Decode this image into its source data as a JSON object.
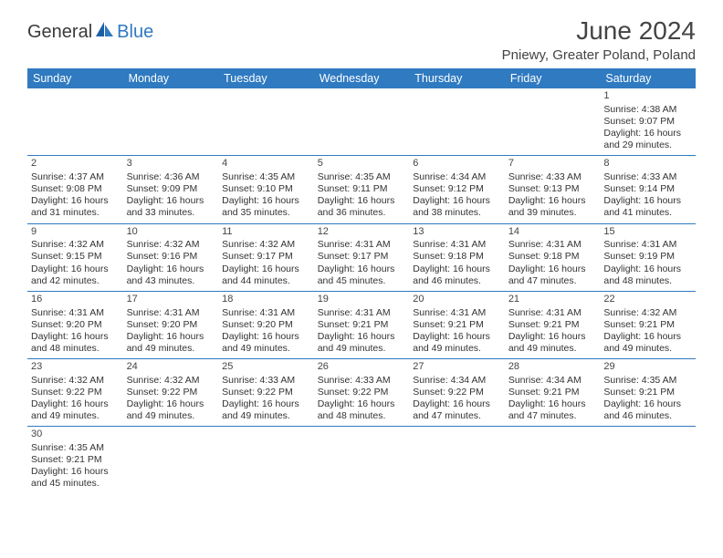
{
  "logo": {
    "part1": "General",
    "part2": "Blue"
  },
  "title": "June 2024",
  "location": "Pniewy, Greater Poland, Poland",
  "colors": {
    "header_bg": "#2f7ac0",
    "header_fg": "#ffffff",
    "border": "#2f7ac0",
    "text": "#333333",
    "title_color": "#444444",
    "logo_blue": "#2f7ac0",
    "logo_gray": "#3a3a3a",
    "background": "#ffffff"
  },
  "typography": {
    "title_fontsize": 28,
    "location_fontsize": 15,
    "header_fontsize": 12.5,
    "cell_fontsize": 10.5,
    "daynum_fontsize": 11
  },
  "day_headers": [
    "Sunday",
    "Monday",
    "Tuesday",
    "Wednesday",
    "Thursday",
    "Friday",
    "Saturday"
  ],
  "weeks": [
    [
      null,
      null,
      null,
      null,
      null,
      null,
      {
        "n": "1",
        "sr": "Sunrise: 4:38 AM",
        "ss": "Sunset: 9:07 PM",
        "d1": "Daylight: 16 hours",
        "d2": "and 29 minutes."
      }
    ],
    [
      {
        "n": "2",
        "sr": "Sunrise: 4:37 AM",
        "ss": "Sunset: 9:08 PM",
        "d1": "Daylight: 16 hours",
        "d2": "and 31 minutes."
      },
      {
        "n": "3",
        "sr": "Sunrise: 4:36 AM",
        "ss": "Sunset: 9:09 PM",
        "d1": "Daylight: 16 hours",
        "d2": "and 33 minutes."
      },
      {
        "n": "4",
        "sr": "Sunrise: 4:35 AM",
        "ss": "Sunset: 9:10 PM",
        "d1": "Daylight: 16 hours",
        "d2": "and 35 minutes."
      },
      {
        "n": "5",
        "sr": "Sunrise: 4:35 AM",
        "ss": "Sunset: 9:11 PM",
        "d1": "Daylight: 16 hours",
        "d2": "and 36 minutes."
      },
      {
        "n": "6",
        "sr": "Sunrise: 4:34 AM",
        "ss": "Sunset: 9:12 PM",
        "d1": "Daylight: 16 hours",
        "d2": "and 38 minutes."
      },
      {
        "n": "7",
        "sr": "Sunrise: 4:33 AM",
        "ss": "Sunset: 9:13 PM",
        "d1": "Daylight: 16 hours",
        "d2": "and 39 minutes."
      },
      {
        "n": "8",
        "sr": "Sunrise: 4:33 AM",
        "ss": "Sunset: 9:14 PM",
        "d1": "Daylight: 16 hours",
        "d2": "and 41 minutes."
      }
    ],
    [
      {
        "n": "9",
        "sr": "Sunrise: 4:32 AM",
        "ss": "Sunset: 9:15 PM",
        "d1": "Daylight: 16 hours",
        "d2": "and 42 minutes."
      },
      {
        "n": "10",
        "sr": "Sunrise: 4:32 AM",
        "ss": "Sunset: 9:16 PM",
        "d1": "Daylight: 16 hours",
        "d2": "and 43 minutes."
      },
      {
        "n": "11",
        "sr": "Sunrise: 4:32 AM",
        "ss": "Sunset: 9:17 PM",
        "d1": "Daylight: 16 hours",
        "d2": "and 44 minutes."
      },
      {
        "n": "12",
        "sr": "Sunrise: 4:31 AM",
        "ss": "Sunset: 9:17 PM",
        "d1": "Daylight: 16 hours",
        "d2": "and 45 minutes."
      },
      {
        "n": "13",
        "sr": "Sunrise: 4:31 AM",
        "ss": "Sunset: 9:18 PM",
        "d1": "Daylight: 16 hours",
        "d2": "and 46 minutes."
      },
      {
        "n": "14",
        "sr": "Sunrise: 4:31 AM",
        "ss": "Sunset: 9:18 PM",
        "d1": "Daylight: 16 hours",
        "d2": "and 47 minutes."
      },
      {
        "n": "15",
        "sr": "Sunrise: 4:31 AM",
        "ss": "Sunset: 9:19 PM",
        "d1": "Daylight: 16 hours",
        "d2": "and 48 minutes."
      }
    ],
    [
      {
        "n": "16",
        "sr": "Sunrise: 4:31 AM",
        "ss": "Sunset: 9:20 PM",
        "d1": "Daylight: 16 hours",
        "d2": "and 48 minutes."
      },
      {
        "n": "17",
        "sr": "Sunrise: 4:31 AM",
        "ss": "Sunset: 9:20 PM",
        "d1": "Daylight: 16 hours",
        "d2": "and 49 minutes."
      },
      {
        "n": "18",
        "sr": "Sunrise: 4:31 AM",
        "ss": "Sunset: 9:20 PM",
        "d1": "Daylight: 16 hours",
        "d2": "and 49 minutes."
      },
      {
        "n": "19",
        "sr": "Sunrise: 4:31 AM",
        "ss": "Sunset: 9:21 PM",
        "d1": "Daylight: 16 hours",
        "d2": "and 49 minutes."
      },
      {
        "n": "20",
        "sr": "Sunrise: 4:31 AM",
        "ss": "Sunset: 9:21 PM",
        "d1": "Daylight: 16 hours",
        "d2": "and 49 minutes."
      },
      {
        "n": "21",
        "sr": "Sunrise: 4:31 AM",
        "ss": "Sunset: 9:21 PM",
        "d1": "Daylight: 16 hours",
        "d2": "and 49 minutes."
      },
      {
        "n": "22",
        "sr": "Sunrise: 4:32 AM",
        "ss": "Sunset: 9:21 PM",
        "d1": "Daylight: 16 hours",
        "d2": "and 49 minutes."
      }
    ],
    [
      {
        "n": "23",
        "sr": "Sunrise: 4:32 AM",
        "ss": "Sunset: 9:22 PM",
        "d1": "Daylight: 16 hours",
        "d2": "and 49 minutes."
      },
      {
        "n": "24",
        "sr": "Sunrise: 4:32 AM",
        "ss": "Sunset: 9:22 PM",
        "d1": "Daylight: 16 hours",
        "d2": "and 49 minutes."
      },
      {
        "n": "25",
        "sr": "Sunrise: 4:33 AM",
        "ss": "Sunset: 9:22 PM",
        "d1": "Daylight: 16 hours",
        "d2": "and 49 minutes."
      },
      {
        "n": "26",
        "sr": "Sunrise: 4:33 AM",
        "ss": "Sunset: 9:22 PM",
        "d1": "Daylight: 16 hours",
        "d2": "and 48 minutes."
      },
      {
        "n": "27",
        "sr": "Sunrise: 4:34 AM",
        "ss": "Sunset: 9:22 PM",
        "d1": "Daylight: 16 hours",
        "d2": "and 47 minutes."
      },
      {
        "n": "28",
        "sr": "Sunrise: 4:34 AM",
        "ss": "Sunset: 9:21 PM",
        "d1": "Daylight: 16 hours",
        "d2": "and 47 minutes."
      },
      {
        "n": "29",
        "sr": "Sunrise: 4:35 AM",
        "ss": "Sunset: 9:21 PM",
        "d1": "Daylight: 16 hours",
        "d2": "and 46 minutes."
      }
    ],
    [
      {
        "n": "30",
        "sr": "Sunrise: 4:35 AM",
        "ss": "Sunset: 9:21 PM",
        "d1": "Daylight: 16 hours",
        "d2": "and 45 minutes."
      },
      null,
      null,
      null,
      null,
      null,
      null
    ]
  ]
}
